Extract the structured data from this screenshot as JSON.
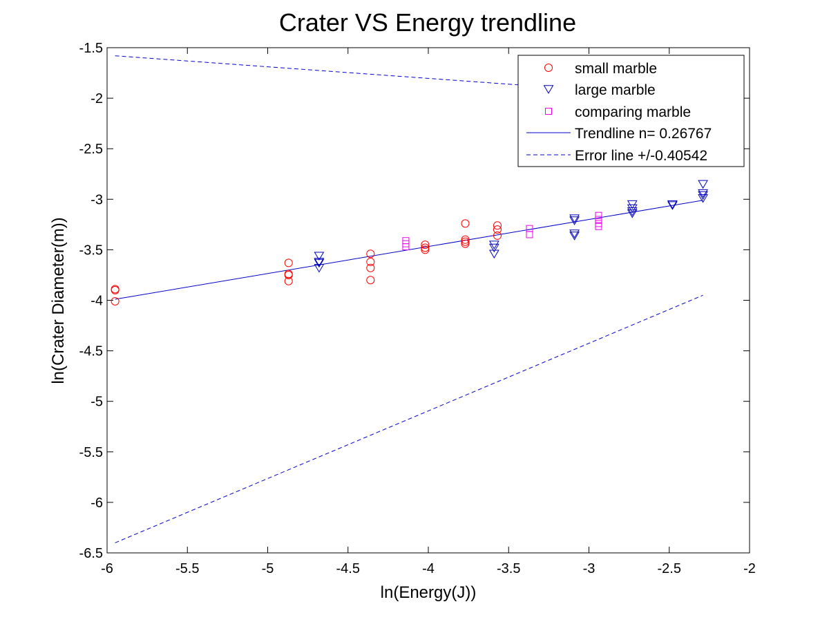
{
  "chart_data": {
    "type": "scatter",
    "title": "Crater VS Energy trendline",
    "xlabel": "ln(Energy(J))",
    "ylabel": "ln(Crater Diameter(m))",
    "xlim": [
      -6,
      -2
    ],
    "ylim": [
      -6.5,
      -1.5
    ],
    "grid": false,
    "legend_position": "top-right",
    "x_ticks": [
      -6,
      -5.5,
      -5,
      -4.5,
      -4,
      -3.5,
      -3,
      -2.5,
      -2
    ],
    "x_tick_labels": [
      "-6",
      "-5.5",
      "-5",
      "-4.5",
      "-4",
      "-3.5",
      "-3",
      "-2.5",
      "-2"
    ],
    "y_ticks": [
      -1.5,
      -2,
      -2.5,
      -3,
      -3.5,
      -4,
      -4.5,
      -5,
      -5.5,
      -6,
      -6.5
    ],
    "y_tick_labels": [
      "-1.5",
      "-2",
      "-2.5",
      "-3",
      "-3.5",
      "-4",
      "-4.5",
      "-5",
      "-5.5",
      "-6",
      "-6.5"
    ],
    "series": [
      {
        "name": "small marble",
        "marker": "circle",
        "color": "#ff0000",
        "points": [
          [
            -5.95,
            -3.89
          ],
          [
            -5.95,
            -3.9
          ],
          [
            -5.95,
            -4.01
          ],
          [
            -4.87,
            -3.63
          ],
          [
            -4.87,
            -3.74
          ],
          [
            -4.87,
            -3.75
          ],
          [
            -4.87,
            -3.81
          ],
          [
            -4.36,
            -3.54
          ],
          [
            -4.36,
            -3.62
          ],
          [
            -4.36,
            -3.68
          ],
          [
            -4.36,
            -3.8
          ],
          [
            -4.02,
            -3.45
          ],
          [
            -4.02,
            -3.48
          ],
          [
            -4.02,
            -3.5
          ],
          [
            -3.77,
            -3.24
          ],
          [
            -3.77,
            -3.4
          ],
          [
            -3.77,
            -3.42
          ],
          [
            -3.77,
            -3.44
          ],
          [
            -3.57,
            -3.26
          ],
          [
            -3.57,
            -3.3
          ],
          [
            -3.57,
            -3.36
          ]
        ]
      },
      {
        "name": "large marble",
        "marker": "triangle-down",
        "color": "#0000bb",
        "points": [
          [
            -4.68,
            -3.56
          ],
          [
            -4.68,
            -3.62
          ],
          [
            -4.68,
            -3.63
          ],
          [
            -4.68,
            -3.68
          ],
          [
            -3.59,
            -3.45
          ],
          [
            -3.59,
            -3.48
          ],
          [
            -3.59,
            -3.54
          ],
          [
            -3.09,
            -3.19
          ],
          [
            -3.09,
            -3.21
          ],
          [
            -3.09,
            -3.34
          ],
          [
            -3.09,
            -3.36
          ],
          [
            -2.73,
            -3.05
          ],
          [
            -2.73,
            -3.09
          ],
          [
            -2.73,
            -3.12
          ],
          [
            -2.73,
            -3.14
          ],
          [
            -2.48,
            -3.05
          ],
          [
            -2.48,
            -3.06
          ],
          [
            -2.29,
            -2.85
          ],
          [
            -2.29,
            -2.94
          ],
          [
            -2.29,
            -2.96
          ],
          [
            -2.29,
            -2.99
          ]
        ]
      },
      {
        "name": "comparing marble",
        "marker": "square",
        "color": "#ee00ee",
        "points": [
          [
            -4.14,
            -3.41
          ],
          [
            -4.14,
            -3.44
          ],
          [
            -4.14,
            -3.47
          ],
          [
            -3.37,
            -3.29
          ],
          [
            -3.37,
            -3.35
          ],
          [
            -2.94,
            -3.16
          ],
          [
            -2.94,
            -3.2
          ],
          [
            -2.94,
            -3.24
          ],
          [
            -2.94,
            -3.27
          ]
        ]
      }
    ],
    "lines": [
      {
        "name": "Trendline n= 0.26767",
        "style": "solid",
        "color": "#0000cc",
        "points": [
          [
            -5.95,
            -3.99
          ],
          [
            -2.29,
            -3.01
          ]
        ]
      },
      {
        "name": "Error line +/-0.40542",
        "style": "dashed",
        "color": "#0000cc",
        "points": [
          [
            -5.95,
            -1.58
          ],
          [
            -2.29,
            -2.0
          ]
        ]
      },
      {
        "name": "",
        "style": "dashed",
        "color": "#0000cc",
        "points": [
          [
            -5.95,
            -6.4
          ],
          [
            -2.29,
            -3.95
          ]
        ]
      }
    ]
  }
}
